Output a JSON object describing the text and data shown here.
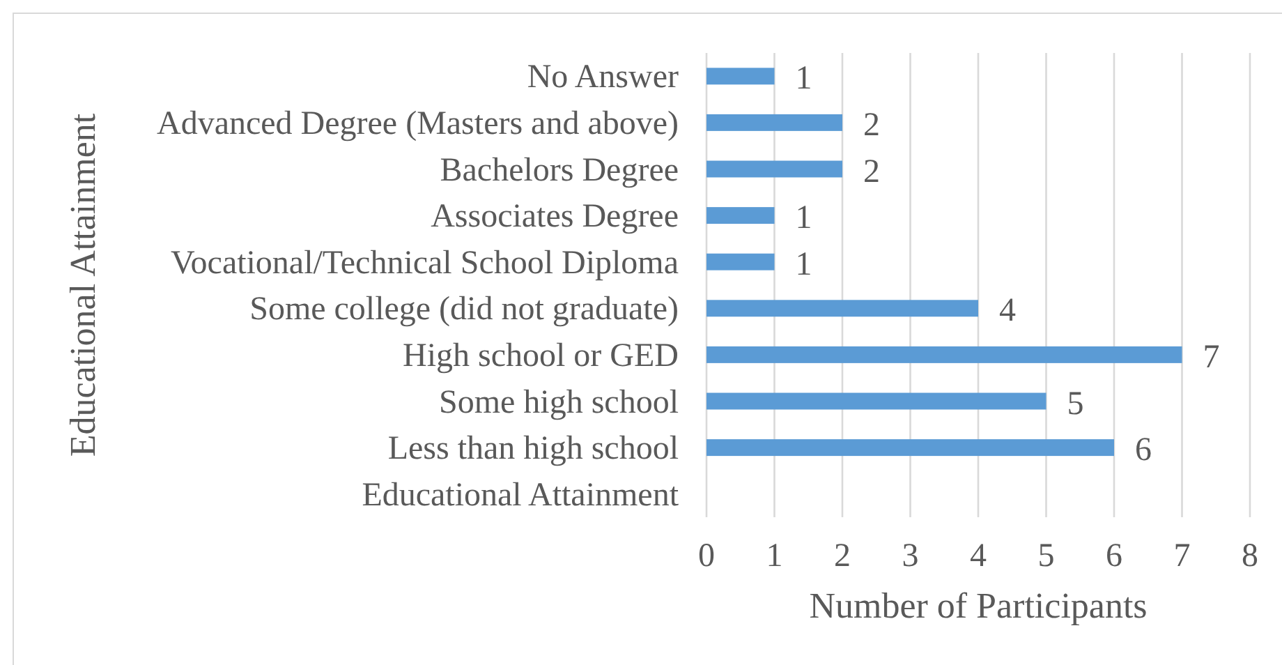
{
  "chart_data": {
    "type": "bar",
    "orientation": "horizontal",
    "xlabel": "Number of Participants",
    "ylabel": "Educational Attainment",
    "categories": [
      "No Answer",
      "Advanced Degree (Masters and above)",
      "Bachelors Degree",
      "Associates Degree",
      "Vocational/Technical School Diploma",
      "Some college (did not graduate)",
      "High school or GED",
      "Some high school",
      "Less than high school",
      "Educational Attainment"
    ],
    "values": [
      1,
      2,
      2,
      1,
      1,
      4,
      7,
      5,
      6,
      null
    ],
    "color": "#5b9bd5",
    "xlim": [
      0,
      8
    ],
    "xticks": [
      0,
      1,
      2,
      3,
      4,
      5,
      6,
      7,
      8
    ],
    "grid": "x",
    "data_labels": true
  }
}
